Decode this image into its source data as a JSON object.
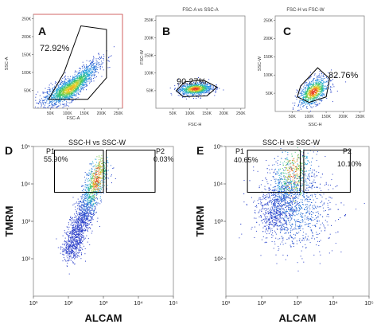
{
  "chart_data": [
    {
      "type": "scatter",
      "panel_label": "A",
      "xlabel": "FSC-A",
      "ylabel": "SSC-A",
      "x_ticks": [
        "50K",
        "100K",
        "150K",
        "200K",
        "250K"
      ],
      "y_ticks": [
        "50K",
        "100K",
        "150K",
        "200K",
        "250K"
      ],
      "xlim": [
        0,
        262144
      ],
      "ylim": [
        0,
        262144
      ],
      "gates": [
        {
          "label": "72.92%",
          "percent": 72.92,
          "shape": "polygon",
          "points": [
            [
              45000,
              25000
            ],
            [
              90000,
              100000
            ],
            [
              140000,
              230000
            ],
            [
              215000,
              220000
            ],
            [
              215000,
              85000
            ],
            [
              160000,
              25000
            ]
          ]
        }
      ],
      "density_cluster": {
        "center": [
          110000,
          55000
        ],
        "spread": [
          40000,
          22000
        ]
      }
    },
    {
      "type": "scatter",
      "panel_label": "B",
      "title": "FSC-A vs SSC-A",
      "xlabel": "FSC-H",
      "ylabel": "FSC-W",
      "x_ticks": [
        "50K",
        "100K",
        "150K",
        "200K",
        "250K"
      ],
      "y_ticks": [
        "50K",
        "100K",
        "150K",
        "200K",
        "250K"
      ],
      "xlim": [
        0,
        262144
      ],
      "ylim": [
        0,
        262144
      ],
      "gates": [
        {
          "label": "90.27%",
          "percent": 90.27,
          "shape": "polygon",
          "points": [
            [
              60000,
              50000
            ],
            [
              85000,
              75000
            ],
            [
              140000,
              80000
            ],
            [
              180000,
              60000
            ],
            [
              150000,
              35000
            ],
            [
              80000,
              33000
            ]
          ]
        }
      ],
      "density_cluster": {
        "center": [
          115000,
          56000
        ],
        "spread": [
          25000,
          9000
        ]
      }
    },
    {
      "type": "scatter",
      "panel_label": "C",
      "title": "FSC-H vs FSC-W",
      "xlabel": "SSC-H",
      "ylabel": "SSC-W",
      "x_ticks": [
        "50K",
        "100K",
        "150K",
        "200K",
        "250K"
      ],
      "y_ticks": [
        "50K",
        "100K",
        "150K",
        "200K",
        "250K"
      ],
      "xlim": [
        0,
        262144
      ],
      "ylim": [
        0,
        262144
      ],
      "gates": [
        {
          "label": "82.76%",
          "percent": 82.76,
          "shape": "polygon",
          "points": [
            [
              65000,
              40000
            ],
            [
              75000,
              70000
            ],
            [
              125000,
              120000
            ],
            [
              160000,
              90000
            ],
            [
              150000,
              40000
            ],
            [
              100000,
              25000
            ]
          ]
        }
      ],
      "density_cluster": {
        "center": [
          112000,
          55000
        ],
        "spread": [
          22000,
          20000
        ]
      }
    },
    {
      "type": "scatter",
      "panel_label": "D",
      "title": "SSC-H vs SSC-W",
      "xlabel": "ALCAM",
      "ylabel": "TMRM",
      "x_scale": "log",
      "y_scale": "log",
      "x_ticks": [
        "10¹",
        "10²",
        "10³",
        "10⁴",
        "10⁵"
      ],
      "y_ticks": [
        "10²",
        "10³",
        "10⁴",
        "10⁵"
      ],
      "xlim": [
        10,
        100000
      ],
      "ylim": [
        10,
        100000
      ],
      "gates": [
        {
          "label": "P1",
          "percent_label": "55.90%",
          "percent": 55.9,
          "shape": "rectangle",
          "x": [
            40,
            1000
          ],
          "y": [
            6000,
            80000
          ]
        },
        {
          "label": "P2",
          "percent_label": "0.03%",
          "percent": 0.03,
          "shape": "rectangle",
          "x": [
            1200,
            30000
          ],
          "y": [
            6000,
            80000
          ]
        }
      ]
    },
    {
      "type": "scatter",
      "panel_label": "E",
      "title": "SSC-H vs SSC-W",
      "xlabel": "ALCAM",
      "ylabel": "TMRM",
      "x_scale": "log",
      "y_scale": "log",
      "x_ticks": [
        "10¹",
        "10²",
        "10³",
        "10⁴",
        "10⁵"
      ],
      "y_ticks": [
        "10²",
        "10³",
        "10⁴",
        "10⁵"
      ],
      "xlim": [
        10,
        100000
      ],
      "ylim": [
        10,
        100000
      ],
      "gates": [
        {
          "label": "P1",
          "percent_label": "40.65%",
          "percent": 40.65,
          "shape": "rectangle",
          "x": [
            40,
            1200
          ],
          "y": [
            6000,
            80000
          ]
        },
        {
          "label": "P2",
          "percent_label": "10.10%",
          "percent": 10.1,
          "shape": "rectangle",
          "x": [
            1500,
            30000
          ],
          "y": [
            6000,
            80000
          ]
        }
      ]
    }
  ]
}
